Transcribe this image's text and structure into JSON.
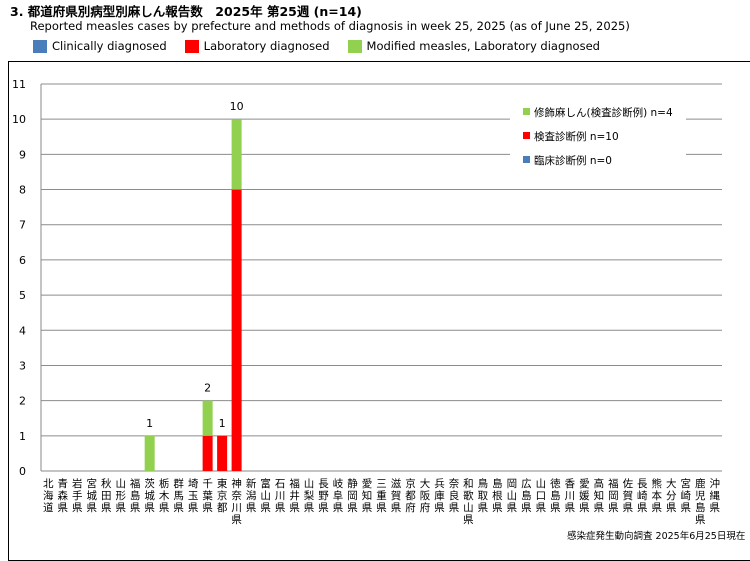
{
  "header": {
    "title": "3. 都道府県別病型別麻しん報告数　2025年 第25週 (n=14)",
    "subtitle": "Reported measles cases by prefecture and methods of diagnosis in week 25, 2025 (as of June 25, 2025)"
  },
  "top_legend": [
    {
      "label": "Clinically diagnosed",
      "color": "#4a7ebb"
    },
    {
      "label": "Laboratory diagnosed",
      "color": "#ff0000"
    },
    {
      "label": "Modified measles, Laboratory diagnosed",
      "color": "#92d050"
    }
  ],
  "footer": "感染症発生動向調査 2025年6月25日現在",
  "chart_data": {
    "type": "bar",
    "stacked": true,
    "ylim": [
      0,
      11
    ],
    "yticks": [
      0,
      1,
      2,
      3,
      4,
      5,
      6,
      7,
      8,
      9,
      10,
      11
    ],
    "grid": true,
    "legend_position": "top-right",
    "categories": [
      "北海道",
      "青森県",
      "岩手県",
      "宮城県",
      "秋田県",
      "山形県",
      "福島県",
      "茨城県",
      "栃木県",
      "群馬県",
      "埼玉県",
      "千葉県",
      "東京都",
      "神奈川県",
      "新潟県",
      "富山県",
      "石川県",
      "福井県",
      "山梨県",
      "長野県",
      "岐阜県",
      "静岡県",
      "愛知県",
      "三重県",
      "滋賀県",
      "京都府",
      "大阪府",
      "兵庫県",
      "奈良県",
      "和歌山県",
      "鳥取県",
      "島根県",
      "岡山県",
      "広島県",
      "山口県",
      "徳島県",
      "香川県",
      "愛媛県",
      "高知県",
      "福岡県",
      "佐賀県",
      "長崎県",
      "熊本県",
      "大分県",
      "宮崎県",
      "鹿児島県",
      "沖縄県"
    ],
    "series": [
      {
        "name": "臨床診断例 n=0",
        "color": "#4a7ebb",
        "values": [
          0,
          0,
          0,
          0,
          0,
          0,
          0,
          0,
          0,
          0,
          0,
          0,
          0,
          0,
          0,
          0,
          0,
          0,
          0,
          0,
          0,
          0,
          0,
          0,
          0,
          0,
          0,
          0,
          0,
          0,
          0,
          0,
          0,
          0,
          0,
          0,
          0,
          0,
          0,
          0,
          0,
          0,
          0,
          0,
          0,
          0,
          0
        ]
      },
      {
        "name": "検査診断例 n=10",
        "color": "#ff0000",
        "values": [
          0,
          0,
          0,
          0,
          0,
          0,
          0,
          0,
          0,
          0,
          0,
          1,
          1,
          8,
          0,
          0,
          0,
          0,
          0,
          0,
          0,
          0,
          0,
          0,
          0,
          0,
          0,
          0,
          0,
          0,
          0,
          0,
          0,
          0,
          0,
          0,
          0,
          0,
          0,
          0,
          0,
          0,
          0,
          0,
          0,
          0,
          0
        ]
      },
      {
        "name": "修飾麻しん(検査診断例) n=4",
        "color": "#92d050",
        "values": [
          0,
          0,
          0,
          0,
          0,
          0,
          0,
          1,
          0,
          0,
          0,
          1,
          0,
          2,
          0,
          0,
          0,
          0,
          0,
          0,
          0,
          0,
          0,
          0,
          0,
          0,
          0,
          0,
          0,
          0,
          0,
          0,
          0,
          0,
          0,
          0,
          0,
          0,
          0,
          0,
          0,
          0,
          0,
          0,
          0,
          0,
          0
        ]
      }
    ],
    "totals_labels": [
      {
        "category": "茨城県",
        "text": "1"
      },
      {
        "category": "千葉県",
        "text": "2"
      },
      {
        "category": "東京都",
        "text": "1"
      },
      {
        "category": "神奈川県",
        "text": "10"
      }
    ],
    "legend_order": [
      2,
      1,
      0
    ]
  }
}
